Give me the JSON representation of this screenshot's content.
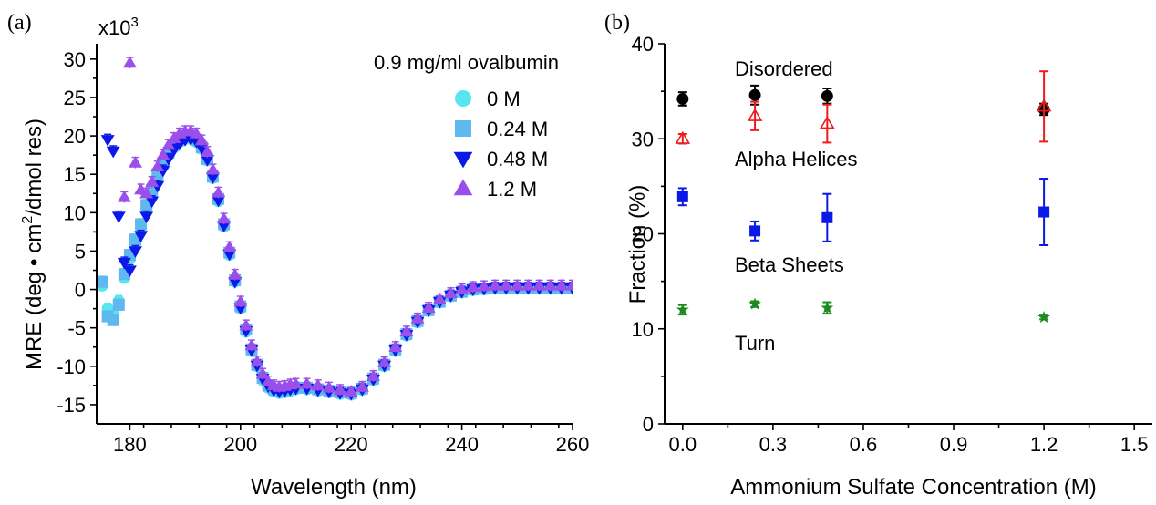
{
  "colors": {
    "cyan": "#55e6f0",
    "lightblue": "#5fb8ee",
    "blue": "#0b18e8",
    "purple": "#9b4fea",
    "black": "#000000",
    "red": "#ee1c1c",
    "darkgreen": "#1c8a1c"
  },
  "chart_data": [
    {
      "type": "scatter",
      "panel_label": "(a)",
      "title": "0.9 mg/ml ovalbumin",
      "xlabel": "Wavelength (nm)",
      "ylabel_parts": [
        "MRE (deg",
        "•",
        "cm",
        "2",
        "/dmol res)"
      ],
      "y_multiplier_base": "x10",
      "y_multiplier_exp": "3",
      "xlim": [
        174,
        260
      ],
      "ylim": [
        -17.5,
        32
      ],
      "xticks": [
        180,
        200,
        220,
        240,
        260
      ],
      "yticks": [
        -15,
        -10,
        -5,
        0,
        5,
        10,
        15,
        20,
        25,
        30
      ],
      "legend_placement": "top-right",
      "series": [
        {
          "name": "0 M",
          "marker": "circle",
          "color": "#55e6f0",
          "x": [
            175,
            176,
            177,
            178,
            179,
            180,
            181,
            182,
            183,
            184,
            185,
            186,
            187,
            188,
            189,
            190,
            191,
            192,
            193,
            194,
            195,
            196,
            197,
            198,
            199,
            200,
            201,
            202,
            203,
            204,
            205,
            206,
            207,
            208,
            209,
            210,
            212,
            214,
            216,
            218,
            220,
            222,
            224,
            226,
            228,
            230,
            232,
            234,
            236,
            238,
            240,
            242,
            244,
            246,
            248,
            250,
            252,
            254,
            256,
            258,
            260
          ],
          "y": [
            0.5,
            -2.5,
            -3,
            -1.5,
            1.5,
            4,
            6,
            8,
            10.5,
            12.5,
            14.5,
            16,
            17.5,
            18.5,
            19.2,
            19.6,
            19.6,
            19.2,
            18.3,
            16.8,
            14.5,
            11.5,
            8.2,
            4.5,
            1,
            -2.5,
            -5.5,
            -8,
            -10,
            -11.8,
            -12.8,
            -13.3,
            -13.5,
            -13.4,
            -13.2,
            -13,
            -13,
            -13.2,
            -13.4,
            -13.6,
            -13.7,
            -13.1,
            -11.8,
            -10,
            -8,
            -6,
            -4.3,
            -2.8,
            -1.7,
            -0.9,
            -0.4,
            -0.1,
            0,
            0.1,
            0.1,
            0.1,
            0.1,
            0.1,
            0.1,
            0.1,
            0.1
          ]
        },
        {
          "name": "0.24 M",
          "marker": "square",
          "color": "#5fb8ee",
          "x": [
            175,
            176,
            177,
            178,
            179,
            180,
            181,
            182,
            183,
            184,
            185,
            186,
            187,
            188,
            189,
            190,
            191,
            192,
            193,
            194,
            195,
            196,
            197,
            198,
            199,
            200,
            201,
            202,
            203,
            204,
            205,
            206,
            207,
            208,
            209,
            210,
            212,
            214,
            216,
            218,
            220,
            222,
            224,
            226,
            228,
            230,
            232,
            234,
            236,
            238,
            240,
            242,
            244,
            246,
            248,
            250,
            252,
            254,
            256,
            258,
            260
          ],
          "y": [
            1,
            -3.5,
            -4,
            -2,
            2,
            4.5,
            6.5,
            8.5,
            11,
            13,
            15,
            16.5,
            17.8,
            18.8,
            19.5,
            19.9,
            19.9,
            19.5,
            18.5,
            17,
            14.7,
            11.8,
            8.5,
            4.8,
            1.2,
            -2.2,
            -5.2,
            -7.8,
            -9.8,
            -11.5,
            -12.5,
            -13,
            -13.2,
            -13.1,
            -12.9,
            -12.8,
            -12.8,
            -13,
            -13.2,
            -13.4,
            -13.5,
            -12.9,
            -11.6,
            -9.8,
            -7.8,
            -5.8,
            -4.1,
            -2.7,
            -1.6,
            -0.8,
            -0.3,
            0,
            0.1,
            0.2,
            0.2,
            0.2,
            0.2,
            0.2,
            0.2,
            0.2,
            0.2
          ]
        },
        {
          "name": "0.48 M",
          "marker": "triangle-down",
          "color": "#0b18e8",
          "x": [
            176,
            177,
            178,
            179,
            180,
            181,
            182,
            183,
            184,
            185,
            186,
            187,
            188,
            189,
            190,
            191,
            192,
            193,
            194,
            195,
            196,
            197,
            198,
            199,
            200,
            201,
            202,
            203,
            204,
            205,
            206,
            207,
            208,
            209,
            210,
            212,
            214,
            216,
            218,
            220,
            222,
            224,
            226,
            228,
            230,
            232,
            234,
            236,
            238,
            240,
            242,
            244,
            246,
            248,
            250,
            252,
            254,
            256,
            258,
            260
          ],
          "y": [
            19.5,
            18,
            9.5,
            3.5,
            2.5,
            5,
            7,
            9.5,
            11.5,
            13.5,
            15.5,
            17,
            18.2,
            19,
            19.5,
            19.6,
            19.3,
            18.4,
            16.9,
            14.6,
            11.6,
            8.3,
            4.6,
            1,
            -2.4,
            -5.4,
            -7.9,
            -9.9,
            -11.6,
            -12.6,
            -13.1,
            -13.3,
            -13.2,
            -13,
            -12.9,
            -12.9,
            -13.1,
            -13.3,
            -13.5,
            -13.6,
            -13,
            -11.7,
            -9.9,
            -7.9,
            -5.9,
            -4.2,
            -2.7,
            -1.6,
            -0.8,
            -0.3,
            0,
            0.1,
            0.2,
            0.2,
            0.2,
            0.2,
            0.2,
            0.2,
            0.2,
            0.2
          ]
        },
        {
          "name": "1.2 M",
          "marker": "triangle-up",
          "color": "#9b4fea",
          "x": [
            179,
            180,
            181,
            182,
            183,
            184,
            185,
            186,
            187,
            188,
            189,
            190,
            191,
            192,
            193,
            194,
            195,
            196,
            197,
            198,
            199,
            200,
            201,
            202,
            203,
            204,
            205,
            206,
            207,
            208,
            209,
            210,
            212,
            214,
            216,
            218,
            220,
            222,
            224,
            226,
            228,
            230,
            232,
            234,
            236,
            238,
            240,
            242,
            244,
            246,
            248,
            250,
            252,
            254,
            256,
            258,
            260
          ],
          "y": [
            12,
            29.5,
            16.5,
            13,
            12.5,
            14,
            16,
            17.5,
            18.8,
            19.7,
            20.3,
            20.6,
            20.6,
            20.3,
            19.4,
            17.9,
            15.6,
            12.6,
            9.2,
            5.5,
            1.9,
            -1.6,
            -4.7,
            -7.3,
            -9.4,
            -11,
            -12,
            -12.5,
            -12.7,
            -12.6,
            -12.4,
            -12.3,
            -12.3,
            -12.5,
            -12.8,
            -13.1,
            -13.3,
            -12.7,
            -11.3,
            -9.5,
            -7.5,
            -5.5,
            -3.8,
            -2.4,
            -1.3,
            -0.5,
            0,
            0.3,
            0.4,
            0.5,
            0.5,
            0.5,
            0.5,
            0.5,
            0.5,
            0.5,
            0.5
          ]
        }
      ]
    },
    {
      "type": "scatter",
      "panel_label": "(b)",
      "xlabel": "Ammonium Sulfate Concentration (M)",
      "ylabel": "Fraction (%)",
      "xlim": [
        -0.06,
        1.56
      ],
      "ylim": [
        0,
        40
      ],
      "xticks": [
        "0.0",
        "0.3",
        "0.6",
        "0.9",
        "1.2",
        "1.5"
      ],
      "yticks": [
        "0",
        "10",
        "20",
        "30",
        "40"
      ],
      "series": [
        {
          "name": "Disordered",
          "marker": "circle",
          "color": "#000000",
          "x": [
            0,
            0.24,
            0.48,
            1.2
          ],
          "y": [
            34.2,
            34.6,
            34.5,
            33.1
          ],
          "err": [
            0.7,
            1.0,
            0.8,
            0.6
          ]
        },
        {
          "name": "Alpha Helices",
          "marker": "triangle-up-open",
          "color": "#ee1c1c",
          "x": [
            0,
            0.24,
            0.48,
            1.2
          ],
          "y": [
            30.0,
            32.4,
            31.6,
            33.4
          ],
          "err": [
            0.5,
            1.5,
            2.0,
            3.7
          ]
        },
        {
          "name": "Beta Sheets",
          "marker": "square",
          "color": "#0b18e8",
          "x": [
            0,
            0.24,
            0.48,
            1.2
          ],
          "y": [
            23.9,
            20.3,
            21.7,
            22.3
          ],
          "err": [
            0.9,
            1.0,
            2.5,
            3.5
          ]
        },
        {
          "name": "Turn",
          "marker": "star",
          "color": "#1c8a1c",
          "x": [
            0,
            0.24,
            0.48,
            1.2
          ],
          "y": [
            12.0,
            12.6,
            12.2,
            11.2
          ],
          "err": [
            0.5,
            0.3,
            0.6,
            0.2
          ]
        }
      ]
    }
  ]
}
